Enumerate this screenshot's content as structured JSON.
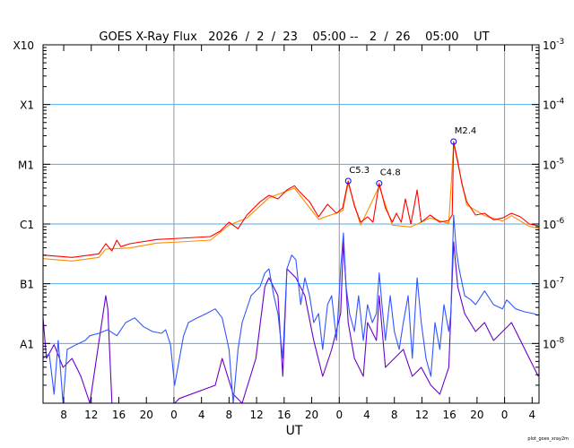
{
  "chart_data": {
    "type": "line",
    "title": "GOES X-Ray Flux   2026  /  2  /  23    05:00 --   2  /  26    05:00    UT",
    "xlabel": "UT",
    "credit": "plot_goes_xray2m",
    "x_unit": "hours since 2026-02-23 05:00 UT",
    "xlim": [
      0,
      72
    ],
    "start_hour_of_day": 5,
    "x_tick_step_hours": 4,
    "midnight_hours": [
      19,
      43,
      67
    ],
    "ylim_log10": [
      -9,
      -3
    ],
    "y_scale": "log",
    "left_class_labels": [
      {
        "label": "X10",
        "log10": -3
      },
      {
        "label": "X1",
        "log10": -4
      },
      {
        "label": "M1",
        "log10": -5
      },
      {
        "label": "C1",
        "log10": -6
      },
      {
        "label": "B1",
        "log10": -7
      },
      {
        "label": "A1",
        "log10": -8
      }
    ],
    "right_labels": [
      {
        "base": "10",
        "exp": "-3",
        "log10": -3
      },
      {
        "base": "10",
        "exp": "-4",
        "log10": -4
      },
      {
        "base": "10",
        "exp": "-5",
        "log10": -5
      },
      {
        "base": "10",
        "exp": "-6",
        "log10": -6
      },
      {
        "base": "10",
        "exp": "-7",
        "log10": -7
      },
      {
        "base": "10",
        "exp": "-8",
        "log10": -8
      }
    ],
    "grid_lines_log10": [
      -4,
      -5,
      -6,
      -7,
      -8
    ],
    "colors": {
      "long": "#ff0000",
      "long2": "#ff8c00",
      "short": "#3355ff",
      "short2": "#6a00cc",
      "grid": "#55aaee",
      "midnight": "#999999",
      "marker": "#0000ff"
    },
    "flares": [
      {
        "label": "C5.3",
        "hour": 44.3,
        "log10": -5.28
      },
      {
        "label": "C4.8",
        "hour": 48.8,
        "log10": -5.32
      },
      {
        "label": "M2.4",
        "hour": 59.6,
        "log10": -4.62
      }
    ],
    "series": [
      {
        "name": "long-wavelength",
        "color_key": "long",
        "points": [
          [
            0,
            -6.52
          ],
          [
            4.2,
            -6.56
          ],
          [
            8.1,
            -6.5
          ],
          [
            9.1,
            -6.33
          ],
          [
            10,
            -6.45
          ],
          [
            10.7,
            -6.27
          ],
          [
            11.3,
            -6.38
          ],
          [
            12.6,
            -6.33
          ],
          [
            16.5,
            -6.26
          ],
          [
            19.8,
            -6.24
          ],
          [
            24.3,
            -6.21
          ],
          [
            25.7,
            -6.12
          ],
          [
            27,
            -5.97
          ],
          [
            28.3,
            -6.08
          ],
          [
            29.6,
            -5.85
          ],
          [
            31.5,
            -5.63
          ],
          [
            32.8,
            -5.52
          ],
          [
            34.1,
            -5.58
          ],
          [
            35.4,
            -5.43
          ],
          [
            36.5,
            -5.36
          ],
          [
            37.4,
            -5.48
          ],
          [
            38.7,
            -5.63
          ],
          [
            40,
            -5.88
          ],
          [
            41.3,
            -5.67
          ],
          [
            42.6,
            -5.82
          ],
          [
            43.5,
            -5.73
          ],
          [
            44.3,
            -5.28
          ],
          [
            45.2,
            -5.7
          ],
          [
            46.1,
            -5.97
          ],
          [
            47.1,
            -5.88
          ],
          [
            47.9,
            -5.97
          ],
          [
            48.8,
            -5.32
          ],
          [
            49.7,
            -5.73
          ],
          [
            50.7,
            -5.97
          ],
          [
            51.3,
            -5.82
          ],
          [
            52,
            -5.97
          ],
          [
            52.6,
            -5.58
          ],
          [
            53.4,
            -6
          ],
          [
            54.3,
            -5.43
          ],
          [
            54.9,
            -5.97
          ],
          [
            56.2,
            -5.85
          ],
          [
            57.6,
            -5.97
          ],
          [
            58.9,
            -5.94
          ],
          [
            59.4,
            -5.85
          ],
          [
            59.6,
            -4.62
          ],
          [
            60.2,
            -4.95
          ],
          [
            60.8,
            -5.33
          ],
          [
            61.5,
            -5.63
          ],
          [
            62.8,
            -5.85
          ],
          [
            64.1,
            -5.82
          ],
          [
            65.4,
            -5.93
          ],
          [
            66.7,
            -5.9
          ],
          [
            68,
            -5.82
          ],
          [
            69.3,
            -5.88
          ],
          [
            70.6,
            -6
          ],
          [
            71.9,
            -6.03
          ]
        ]
      },
      {
        "name": "long-wavelength-secondary",
        "color_key": "long2",
        "points": [
          [
            0,
            -6.58
          ],
          [
            4.2,
            -6.62
          ],
          [
            8.1,
            -6.56
          ],
          [
            9.1,
            -6.42
          ],
          [
            12.6,
            -6.4
          ],
          [
            16.5,
            -6.32
          ],
          [
            19.8,
            -6.3
          ],
          [
            24.3,
            -6.27
          ],
          [
            27,
            -6.02
          ],
          [
            29.6,
            -5.9
          ],
          [
            32.8,
            -5.56
          ],
          [
            36.5,
            -5.4
          ],
          [
            40,
            -5.92
          ],
          [
            43.5,
            -5.78
          ],
          [
            44.3,
            -5.32
          ],
          [
            46.1,
            -6.02
          ],
          [
            48.8,
            -5.37
          ],
          [
            50.7,
            -6.02
          ],
          [
            53.4,
            -6.05
          ],
          [
            56.2,
            -5.9
          ],
          [
            58.9,
            -5.99
          ],
          [
            59.6,
            -4.66
          ],
          [
            61.5,
            -5.68
          ],
          [
            64.1,
            -5.86
          ],
          [
            66.7,
            -5.95
          ],
          [
            68,
            -5.86
          ],
          [
            70.6,
            -6.04
          ],
          [
            71.9,
            -6.07
          ]
        ]
      },
      {
        "name": "short-wavelength",
        "color_key": "short",
        "points": [
          [
            0,
            -8.25
          ],
          [
            0.9,
            -8.17
          ],
          [
            1.6,
            -8.85
          ],
          [
            2.2,
            -7.95
          ],
          [
            2.9,
            -9
          ],
          [
            3.5,
            -8.1
          ],
          [
            4.8,
            -8.02
          ],
          [
            6.1,
            -7.95
          ],
          [
            6.8,
            -7.87
          ],
          [
            8.1,
            -7.83
          ],
          [
            9.4,
            -7.77
          ],
          [
            10.7,
            -7.87
          ],
          [
            12,
            -7.65
          ],
          [
            13.3,
            -7.57
          ],
          [
            14.6,
            -7.72
          ],
          [
            15.9,
            -7.8
          ],
          [
            17.2,
            -7.83
          ],
          [
            17.8,
            -7.77
          ],
          [
            18.5,
            -8.02
          ],
          [
            19.1,
            -8.7
          ],
          [
            19.8,
            -8.25
          ],
          [
            20.4,
            -7.87
          ],
          [
            21.1,
            -7.65
          ],
          [
            22.4,
            -7.57
          ],
          [
            23.7,
            -7.5
          ],
          [
            25,
            -7.42
          ],
          [
            26,
            -7.57
          ],
          [
            27,
            -8.1
          ],
          [
            27.6,
            -9
          ],
          [
            28.3,
            -8.1
          ],
          [
            28.9,
            -7.65
          ],
          [
            30.2,
            -7.2
          ],
          [
            31.5,
            -7.05
          ],
          [
            32.2,
            -6.82
          ],
          [
            32.8,
            -6.75
          ],
          [
            33.5,
            -7.2
          ],
          [
            34.1,
            -7.5
          ],
          [
            34.8,
            -8.25
          ],
          [
            35.4,
            -6.75
          ],
          [
            36.1,
            -6.52
          ],
          [
            36.7,
            -6.6
          ],
          [
            37.4,
            -7.35
          ],
          [
            38,
            -6.9
          ],
          [
            38.7,
            -7.2
          ],
          [
            39.3,
            -7.65
          ],
          [
            40,
            -7.5
          ],
          [
            40.6,
            -8.1
          ],
          [
            41.3,
            -7.35
          ],
          [
            41.9,
            -7.2
          ],
          [
            42.6,
            -7.95
          ],
          [
            43.2,
            -6.75
          ],
          [
            43.6,
            -6.15
          ],
          [
            44,
            -7.05
          ],
          [
            44.5,
            -7.5
          ],
          [
            45.2,
            -7.8
          ],
          [
            45.8,
            -7.2
          ],
          [
            46.5,
            -7.95
          ],
          [
            47.1,
            -7.35
          ],
          [
            47.8,
            -7.65
          ],
          [
            48.4,
            -7.5
          ],
          [
            48.8,
            -6.82
          ],
          [
            49.2,
            -7.35
          ],
          [
            49.7,
            -7.95
          ],
          [
            50.4,
            -7.2
          ],
          [
            51,
            -7.8
          ],
          [
            51.7,
            -8.1
          ],
          [
            52.3,
            -7.65
          ],
          [
            53,
            -7.2
          ],
          [
            53.6,
            -8.25
          ],
          [
            54.3,
            -6.9
          ],
          [
            54.9,
            -7.65
          ],
          [
            55.6,
            -8.25
          ],
          [
            56.3,
            -8.55
          ],
          [
            56.9,
            -7.65
          ],
          [
            57.6,
            -8.1
          ],
          [
            58.2,
            -7.35
          ],
          [
            58.9,
            -7.8
          ],
          [
            59.2,
            -7.5
          ],
          [
            59.6,
            -5.85
          ],
          [
            60,
            -6.45
          ],
          [
            60.4,
            -6.75
          ],
          [
            61.2,
            -7.2
          ],
          [
            62.1,
            -7.27
          ],
          [
            62.8,
            -7.35
          ],
          [
            64.1,
            -7.12
          ],
          [
            65.4,
            -7.35
          ],
          [
            66.7,
            -7.42
          ],
          [
            67.3,
            -7.27
          ],
          [
            68,
            -7.35
          ],
          [
            68.6,
            -7.42
          ],
          [
            69.9,
            -7.47
          ],
          [
            71.2,
            -7.5
          ],
          [
            71.9,
            -7.53
          ]
        ]
      },
      {
        "name": "short-wavelength-secondary",
        "color_key": "short2",
        "points": [
          [
            0,
            -7.57
          ],
          [
            0.5,
            -8.25
          ],
          [
            1.6,
            -8.02
          ],
          [
            2.9,
            -8.4
          ],
          [
            4.2,
            -8.25
          ],
          [
            5.5,
            -8.55
          ],
          [
            6.8,
            -9
          ],
          [
            9.1,
            -7.2
          ],
          [
            9.4,
            -7.42
          ],
          [
            10,
            -9
          ],
          [
            19.1,
            -9
          ],
          [
            19.8,
            -8.92
          ],
          [
            25,
            -8.7
          ],
          [
            26,
            -8.25
          ],
          [
            27.6,
            -8.85
          ],
          [
            28.9,
            -9
          ],
          [
            30.9,
            -8.25
          ],
          [
            32.2,
            -7.05
          ],
          [
            32.8,
            -6.9
          ],
          [
            34.1,
            -7.2
          ],
          [
            34.8,
            -8.55
          ],
          [
            35.4,
            -6.75
          ],
          [
            36.7,
            -6.9
          ],
          [
            38,
            -7.2
          ],
          [
            39.3,
            -7.95
          ],
          [
            40.6,
            -8.55
          ],
          [
            41.9,
            -8.1
          ],
          [
            43.2,
            -7.5
          ],
          [
            43.6,
            -6.3
          ],
          [
            44.3,
            -7.65
          ],
          [
            45.2,
            -8.25
          ],
          [
            46.5,
            -8.55
          ],
          [
            47.1,
            -7.65
          ],
          [
            48.4,
            -7.95
          ],
          [
            48.8,
            -7.2
          ],
          [
            49.7,
            -8.4
          ],
          [
            51,
            -8.25
          ],
          [
            52.3,
            -8.1
          ],
          [
            53.6,
            -8.55
          ],
          [
            54.9,
            -8.4
          ],
          [
            56.3,
            -8.7
          ],
          [
            57.6,
            -8.85
          ],
          [
            58.9,
            -8.4
          ],
          [
            59.6,
            -6.3
          ],
          [
            60.2,
            -7.05
          ],
          [
            61.2,
            -7.5
          ],
          [
            62.8,
            -7.8
          ],
          [
            64.1,
            -7.65
          ],
          [
            65.4,
            -7.95
          ],
          [
            66.7,
            -7.8
          ],
          [
            68,
            -7.65
          ],
          [
            69.3,
            -7.95
          ],
          [
            70.6,
            -8.25
          ],
          [
            71.9,
            -8.55
          ]
        ]
      }
    ]
  }
}
